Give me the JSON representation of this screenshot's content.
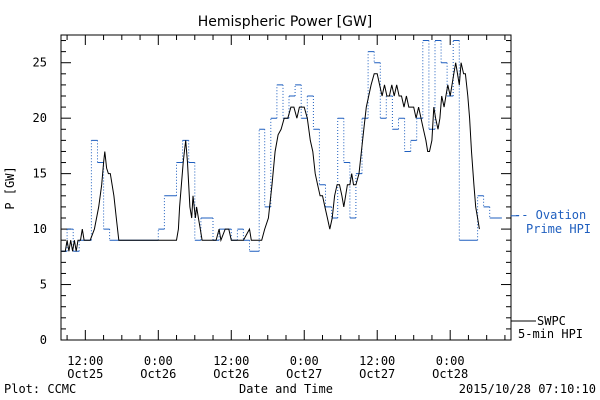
{
  "chart_data": {
    "type": "line",
    "title": "Hemispheric Power [GW]",
    "xlabel": "Date and Time",
    "ylabel": "P [GW]",
    "ylim": [
      0,
      27.5
    ],
    "yticks": [
      0,
      5,
      10,
      15,
      20,
      25
    ],
    "x_unit": "hours since 2015-10-25 00:00 UT",
    "xlim": [
      8,
      82
    ],
    "xticks": [
      {
        "x": 12,
        "time": "12:00",
        "date": "Oct25"
      },
      {
        "x": 24,
        "time": "0:00",
        "date": "Oct26"
      },
      {
        "x": 36,
        "time": "12:00",
        "date": "Oct26"
      },
      {
        "x": 48,
        "time": "0:00",
        "date": "Oct27"
      },
      {
        "x": 60,
        "time": "12:00",
        "date": "Oct27"
      },
      {
        "x": 72,
        "time": "0:00",
        "date": "Oct28"
      }
    ],
    "grid": false,
    "series": [
      {
        "name": "SWPC 5-min HPI",
        "label_lines": [
          "SWPC",
          "5-min HPI"
        ],
        "color": "#000000",
        "style": "solid",
        "points": [
          [
            8,
            8
          ],
          [
            8.7,
            8
          ],
          [
            9,
            9
          ],
          [
            9.3,
            8
          ],
          [
            9.6,
            9
          ],
          [
            9.9,
            8
          ],
          [
            10.2,
            9
          ],
          [
            10.5,
            8
          ],
          [
            10.8,
            9
          ],
          [
            11.2,
            9
          ],
          [
            11.5,
            10
          ],
          [
            11.8,
            9
          ],
          [
            12.8,
            9
          ],
          [
            13.5,
            10
          ],
          [
            14.2,
            12
          ],
          [
            14.7,
            14
          ],
          [
            15.0,
            16
          ],
          [
            15.2,
            17
          ],
          [
            15.5,
            15.5
          ],
          [
            15.8,
            15
          ],
          [
            16.1,
            15
          ],
          [
            16.4,
            14
          ],
          [
            16.7,
            13
          ],
          [
            17.1,
            11
          ],
          [
            17.5,
            9
          ],
          [
            18,
            9
          ],
          [
            20,
            9
          ],
          [
            22,
            9
          ],
          [
            24,
            9
          ],
          [
            26,
            9
          ],
          [
            27,
            9
          ],
          [
            27.3,
            10
          ],
          [
            27.5,
            12
          ],
          [
            27.8,
            14
          ],
          [
            28.1,
            16
          ],
          [
            28.3,
            17
          ],
          [
            28.5,
            18
          ],
          [
            28.8,
            16
          ],
          [
            29.0,
            14
          ],
          [
            29.2,
            12
          ],
          [
            29.5,
            11
          ],
          [
            29.7,
            13
          ],
          [
            29.9,
            12
          ],
          [
            30.1,
            11
          ],
          [
            30.3,
            12
          ],
          [
            30.6,
            11
          ],
          [
            30.9,
            10
          ],
          [
            31.2,
            9
          ],
          [
            32,
            9
          ],
          [
            33.5,
            9
          ],
          [
            34,
            10
          ],
          [
            34.3,
            9
          ],
          [
            35,
            10
          ],
          [
            35.6,
            10
          ],
          [
            36,
            9
          ],
          [
            37,
            9
          ],
          [
            38,
            9
          ],
          [
            39,
            10
          ],
          [
            39.3,
            9
          ],
          [
            41,
            9
          ],
          [
            41.5,
            10
          ],
          [
            42.1,
            11
          ],
          [
            42.7,
            14
          ],
          [
            43.2,
            17
          ],
          [
            43.7,
            18.5
          ],
          [
            44.2,
            19
          ],
          [
            44.7,
            20
          ],
          [
            45.3,
            20
          ],
          [
            45.8,
            21
          ],
          [
            46.3,
            21
          ],
          [
            46.8,
            20
          ],
          [
            47.2,
            21
          ],
          [
            47.6,
            21
          ],
          [
            48,
            21
          ],
          [
            48.5,
            20
          ],
          [
            49,
            18
          ],
          [
            49.4,
            17
          ],
          [
            49.8,
            15
          ],
          [
            50.2,
            14
          ],
          [
            50.6,
            13
          ],
          [
            51,
            13
          ],
          [
            51.4,
            12
          ],
          [
            51.8,
            11
          ],
          [
            52.2,
            10
          ],
          [
            52.6,
            11
          ],
          [
            53.0,
            13
          ],
          [
            53.4,
            14
          ],
          [
            53.8,
            14
          ],
          [
            54.2,
            13
          ],
          [
            54.5,
            12
          ],
          [
            54.8,
            13
          ],
          [
            55.1,
            14
          ],
          [
            55.5,
            14
          ],
          [
            55.8,
            15
          ],
          [
            56.1,
            14
          ],
          [
            56.5,
            14
          ],
          [
            57,
            15
          ],
          [
            57.4,
            17
          ],
          [
            57.8,
            19
          ],
          [
            58.2,
            21
          ],
          [
            58.6,
            22
          ],
          [
            59,
            23
          ],
          [
            59.5,
            24
          ],
          [
            60,
            24
          ],
          [
            60.4,
            23
          ],
          [
            60.8,
            22
          ],
          [
            61.2,
            23
          ],
          [
            61.6,
            22
          ],
          [
            62,
            22
          ],
          [
            62.4,
            23
          ],
          [
            62.8,
            22
          ],
          [
            63.2,
            23
          ],
          [
            63.6,
            22
          ],
          [
            64,
            22
          ],
          [
            64.4,
            21
          ],
          [
            64.8,
            22
          ],
          [
            65.2,
            21
          ],
          [
            65.6,
            21
          ],
          [
            66,
            21
          ],
          [
            66.4,
            20
          ],
          [
            66.8,
            21
          ],
          [
            67.2,
            20
          ],
          [
            67.6,
            19
          ],
          [
            68,
            18
          ],
          [
            68.3,
            17
          ],
          [
            68.6,
            17
          ],
          [
            69,
            18
          ],
          [
            69.3,
            21
          ],
          [
            69.6,
            20
          ],
          [
            70,
            19
          ],
          [
            70.3,
            20
          ],
          [
            70.6,
            22
          ],
          [
            71,
            21
          ],
          [
            71.3,
            22
          ],
          [
            71.6,
            23
          ],
          [
            72,
            22
          ],
          [
            72.3,
            23
          ],
          [
            72.6,
            24
          ],
          [
            72.9,
            25
          ],
          [
            73.2,
            24
          ],
          [
            73.5,
            23
          ],
          [
            73.8,
            25
          ],
          [
            74.2,
            24
          ],
          [
            74.5,
            24
          ],
          [
            74.9,
            22
          ],
          [
            75.2,
            20
          ],
          [
            75.5,
            17
          ],
          [
            75.9,
            14
          ],
          [
            76.2,
            12
          ],
          [
            76.5,
            11
          ],
          [
            76.8,
            10
          ]
        ]
      },
      {
        "name": "Ovation Prime HPI",
        "label_lines": [
          "-- Ovation",
          "Prime HPI"
        ],
        "color": "#1f5fbf",
        "style": "dotted-step",
        "points": [
          [
            8,
            8
          ],
          [
            9,
            10
          ],
          [
            10,
            8
          ],
          [
            11,
            9
          ],
          [
            12,
            9
          ],
          [
            13,
            18
          ],
          [
            14,
            16
          ],
          [
            15,
            10
          ],
          [
            16,
            9
          ],
          [
            17,
            9
          ],
          [
            19,
            9
          ],
          [
            21,
            9
          ],
          [
            24,
            10
          ],
          [
            25,
            13
          ],
          [
            26,
            13
          ],
          [
            27,
            16
          ],
          [
            28,
            18
          ],
          [
            29,
            16
          ],
          [
            30,
            9
          ],
          [
            31,
            11
          ],
          [
            32,
            11
          ],
          [
            33,
            9
          ],
          [
            34,
            10
          ],
          [
            35,
            10
          ],
          [
            36,
            9
          ],
          [
            37,
            10
          ],
          [
            38,
            9
          ],
          [
            39,
            8
          ],
          [
            40,
            8
          ],
          [
            40.6,
            19
          ],
          [
            41.5,
            12
          ],
          [
            42.5,
            20
          ],
          [
            43.5,
            23
          ],
          [
            44.5,
            20
          ],
          [
            45.5,
            22
          ],
          [
            46.5,
            23
          ],
          [
            47.5,
            20
          ],
          [
            48.5,
            22
          ],
          [
            49.5,
            19
          ],
          [
            50.5,
            14
          ],
          [
            51.5,
            12
          ],
          [
            52.5,
            11
          ],
          [
            53.5,
            20
          ],
          [
            54.5,
            16
          ],
          [
            55.5,
            11
          ],
          [
            56.5,
            15
          ],
          [
            57.5,
            20
          ],
          [
            58.5,
            26
          ],
          [
            59.5,
            25
          ],
          [
            60.5,
            20
          ],
          [
            61.5,
            22
          ],
          [
            62.5,
            19
          ],
          [
            63.5,
            20
          ],
          [
            64.5,
            17
          ],
          [
            65.5,
            18
          ],
          [
            66.5,
            20
          ],
          [
            67.5,
            27
          ],
          [
            68.5,
            19
          ],
          [
            69.5,
            27
          ],
          [
            70.5,
            25
          ],
          [
            71.5,
            22
          ],
          [
            72.5,
            27
          ],
          [
            73.5,
            9
          ],
          [
            74.5,
            9
          ],
          [
            75.5,
            9
          ],
          [
            76.5,
            13
          ],
          [
            77.5,
            12
          ],
          [
            78.5,
            11
          ],
          [
            79.5,
            11
          ]
        ]
      }
    ]
  },
  "footer": {
    "plot_source": "Plot: CCMC",
    "timestamp": "2015/10/28 07:10:10"
  },
  "colors": {
    "model_series": "#1f5fbf",
    "observed_series": "#000000",
    "axes": "#000000"
  }
}
